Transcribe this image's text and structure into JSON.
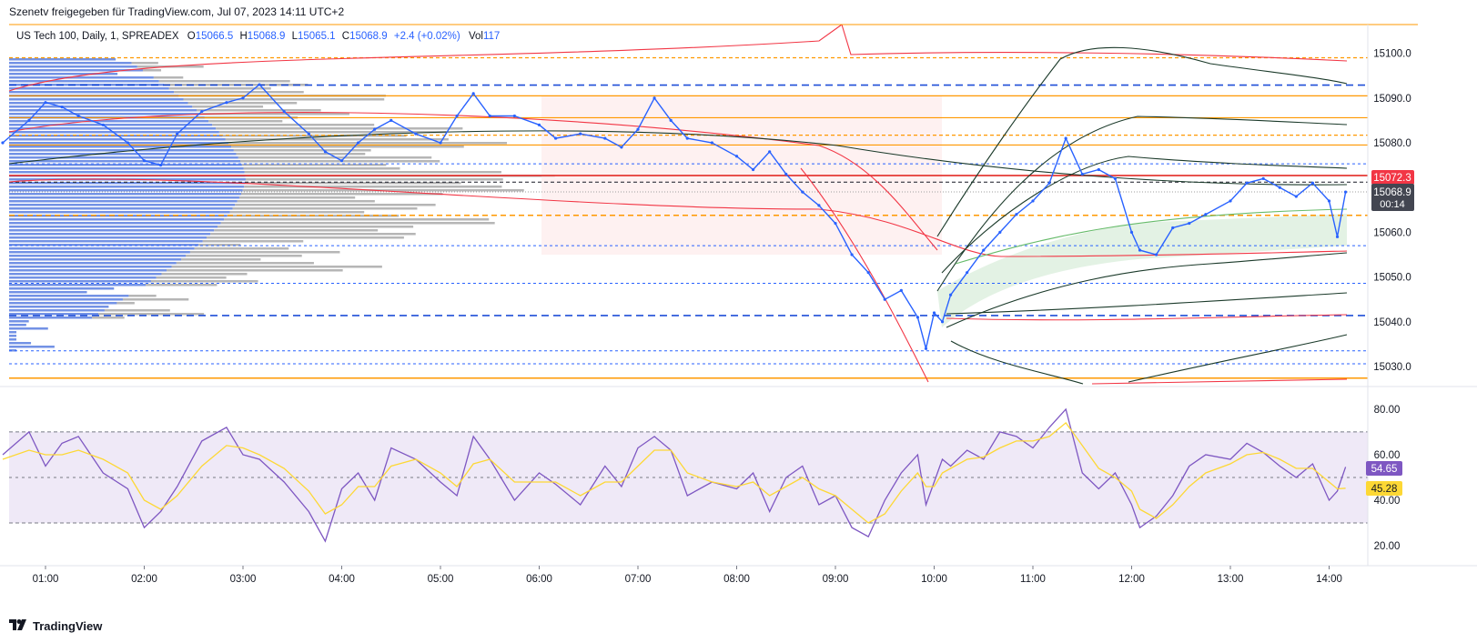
{
  "header": {
    "shared_by": "Szenetv freigegeben für TradingView.com, Jul 07, 2023 14:11 UTC+2"
  },
  "legend": {
    "symbol": "US Tech 100, Daily, 1, SPREADEX",
    "open_label": "O",
    "open": "15066.5",
    "high_label": "H",
    "high": "15068.9",
    "low_label": "L",
    "low": "15065.1",
    "close_label": "C",
    "close": "15068.9",
    "change": "+2.4 (+0.02%)",
    "vol_label": "Vol",
    "vol": "117"
  },
  "badges": {
    "red_price": "15072.3",
    "last_price": "15068.9",
    "countdown": "00:14",
    "rsi": "54.65",
    "rsi_ma": "45.28"
  },
  "footer": {
    "brand": "TradingView"
  },
  "colors": {
    "up_bar": "#2962ff",
    "red_line": "#f23645",
    "orange_line": "#ff9800",
    "dark_band": "#1b3a2a",
    "green_fill": "#c8e6c9",
    "rsi_line": "#7e57c2",
    "rsi_ma": "#fdd835",
    "rsi_band": "#ede7f6"
  },
  "chart_data": [
    {
      "type": "line",
      "title": "US Tech 100, Daily, 1, SPREADEX",
      "x_tick_labels": [
        "01:00",
        "02:00",
        "03:00",
        "04:00",
        "05:00",
        "06:00",
        "07:00",
        "08:00",
        "09:00",
        "10:00",
        "11:00",
        "12:00",
        "13:00",
        "14:00"
      ],
      "y_tick_labels": [
        "15100.0",
        "15090.0",
        "15080.0",
        "15060.0",
        "15050.0",
        "15040.0",
        "15030.0"
      ],
      "ylim": [
        15026,
        15105
      ],
      "series": [
        {
          "x": [
            "00:34",
            "00:50",
            "01:00",
            "01:10",
            "01:20",
            "01:35",
            "01:50",
            "02:00",
            "02:10",
            "02:20",
            "02:35",
            "02:50",
            "03:00",
            "03:10",
            "03:25",
            "03:40",
            "03:50",
            "04:00",
            "04:10",
            "04:20",
            "04:30",
            "04:45",
            "05:00",
            "05:10",
            "05:20",
            "05:30",
            "05:45",
            "06:00",
            "06:10",
            "06:25",
            "06:40",
            "06:50",
            "07:00",
            "07:10",
            "07:20",
            "07:30",
            "07:45",
            "08:00",
            "08:10",
            "08:20",
            "08:30",
            "08:40",
            "08:50",
            "09:00",
            "09:10",
            "09:20",
            "09:30",
            "09:40",
            "09:50",
            "09:55",
            "10:00",
            "10:05",
            "10:10",
            "10:20",
            "10:30",
            "10:40",
            "10:50",
            "11:00",
            "11:10",
            "11:20",
            "11:30",
            "11:40",
            "11:50",
            "12:00",
            "12:05",
            "12:15",
            "12:25",
            "12:35",
            "12:45",
            "13:00",
            "13:10",
            "13:20",
            "13:30",
            "13:40",
            "13:50",
            "14:00",
            "14:05",
            "14:10"
          ],
          "values": [
            15080,
            15085,
            15089,
            15088,
            15086,
            15084,
            15080,
            15076,
            15075,
            15082,
            15087,
            15089,
            15090,
            15093,
            15087,
            15082,
            15078,
            15076,
            15080,
            15083,
            15085,
            15082,
            15080,
            15086,
            15091,
            15086,
            15086,
            15084,
            15081,
            15082,
            15081,
            15079,
            15083,
            15090,
            15085,
            15081,
            15080,
            15077,
            15074,
            15078,
            15073,
            15069,
            15066,
            15062,
            15055,
            15051,
            15045,
            15047,
            15041,
            15034,
            15042,
            15040,
            15046,
            15051,
            15056,
            15060,
            15064,
            15067,
            15071,
            15081,
            15073,
            15074,
            15072,
            15060,
            15056,
            15055,
            15061,
            15062,
            15064,
            15067,
            15071,
            15072,
            15070,
            15068,
            15071,
            15067,
            15059,
            15069
          ]
        }
      ]
    },
    {
      "type": "line",
      "title": "",
      "y_tick_labels": [
        "80.00",
        "60.00",
        "40.00",
        "20.00"
      ],
      "ylim": [
        15,
        86
      ],
      "series": [
        {
          "x": [
            "00:34",
            "00:50",
            "01:00",
            "01:10",
            "01:20",
            "01:35",
            "01:50",
            "02:00",
            "02:10",
            "02:20",
            "02:35",
            "02:50",
            "03:00",
            "03:10",
            "03:25",
            "03:40",
            "03:50",
            "04:00",
            "04:10",
            "04:20",
            "04:30",
            "04:45",
            "05:00",
            "05:10",
            "05:20",
            "05:30",
            "05:45",
            "06:00",
            "06:10",
            "06:25",
            "06:40",
            "06:50",
            "07:00",
            "07:10",
            "07:20",
            "07:30",
            "07:45",
            "08:00",
            "08:10",
            "08:20",
            "08:30",
            "08:40",
            "08:50",
            "09:00",
            "09:10",
            "09:20",
            "09:30",
            "09:40",
            "09:50",
            "09:55",
            "10:00",
            "10:05",
            "10:10",
            "10:20",
            "10:30",
            "10:40",
            "10:50",
            "11:00",
            "11:10",
            "11:20",
            "11:30",
            "11:40",
            "11:50",
            "12:00",
            "12:05",
            "12:15",
            "12:25",
            "12:35",
            "12:45",
            "13:00",
            "13:10",
            "13:20",
            "13:30",
            "13:40",
            "13:50",
            "14:00",
            "14:05",
            "14:10"
          ],
          "values": [
            60,
            70,
            55,
            65,
            68,
            52,
            45,
            28,
            35,
            46,
            66,
            72,
            60,
            58,
            48,
            35,
            22,
            45,
            52,
            40,
            63,
            58,
            48,
            42,
            68,
            58,
            40,
            52,
            47,
            38,
            55,
            46,
            63,
            68,
            62,
            42,
            48,
            45,
            52,
            35,
            50,
            55,
            38,
            42,
            28,
            24,
            40,
            52,
            60,
            38,
            48,
            58,
            55,
            62,
            58,
            70,
            68,
            63,
            72,
            80,
            52,
            45,
            52,
            38,
            28,
            33,
            42,
            55,
            60,
            58,
            65,
            61,
            55,
            50,
            56,
            40,
            44,
            54.65
          ]
        },
        {
          "x": [
            "00:34",
            "00:50",
            "01:00",
            "01:10",
            "01:20",
            "01:35",
            "01:50",
            "02:00",
            "02:10",
            "02:20",
            "02:35",
            "02:50",
            "03:00",
            "03:10",
            "03:25",
            "03:40",
            "03:50",
            "04:00",
            "04:10",
            "04:20",
            "04:30",
            "04:45",
            "05:00",
            "05:10",
            "05:20",
            "05:30",
            "05:45",
            "06:00",
            "06:10",
            "06:25",
            "06:40",
            "06:50",
            "07:00",
            "07:10",
            "07:20",
            "07:30",
            "07:45",
            "08:00",
            "08:10",
            "08:20",
            "08:30",
            "08:40",
            "08:50",
            "09:00",
            "09:10",
            "09:20",
            "09:30",
            "09:40",
            "09:50",
            "09:55",
            "10:00",
            "10:05",
            "10:10",
            "10:20",
            "10:30",
            "10:40",
            "10:50",
            "11:00",
            "11:10",
            "11:20",
            "11:30",
            "11:40",
            "11:50",
            "12:00",
            "12:05",
            "12:15",
            "12:25",
            "12:35",
            "12:45",
            "13:00",
            "13:10",
            "13:20",
            "13:30",
            "13:40",
            "13:50",
            "14:00",
            "14:05",
            "14:10"
          ],
          "values": [
            58,
            62,
            60,
            60,
            62,
            58,
            52,
            40,
            36,
            42,
            55,
            64,
            63,
            60,
            54,
            44,
            34,
            38,
            46,
            46,
            55,
            58,
            52,
            46,
            56,
            58,
            48,
            48,
            48,
            42,
            48,
            48,
            55,
            62,
            62,
            52,
            48,
            46,
            48,
            42,
            46,
            50,
            45,
            42,
            36,
            30,
            34,
            44,
            52,
            46,
            46,
            52,
            54,
            58,
            59,
            63,
            66,
            66,
            68,
            74,
            64,
            54,
            50,
            44,
            36,
            32,
            38,
            46,
            52,
            56,
            60,
            61,
            58,
            54,
            54,
            48,
            45,
            45.28
          ]
        }
      ]
    }
  ]
}
